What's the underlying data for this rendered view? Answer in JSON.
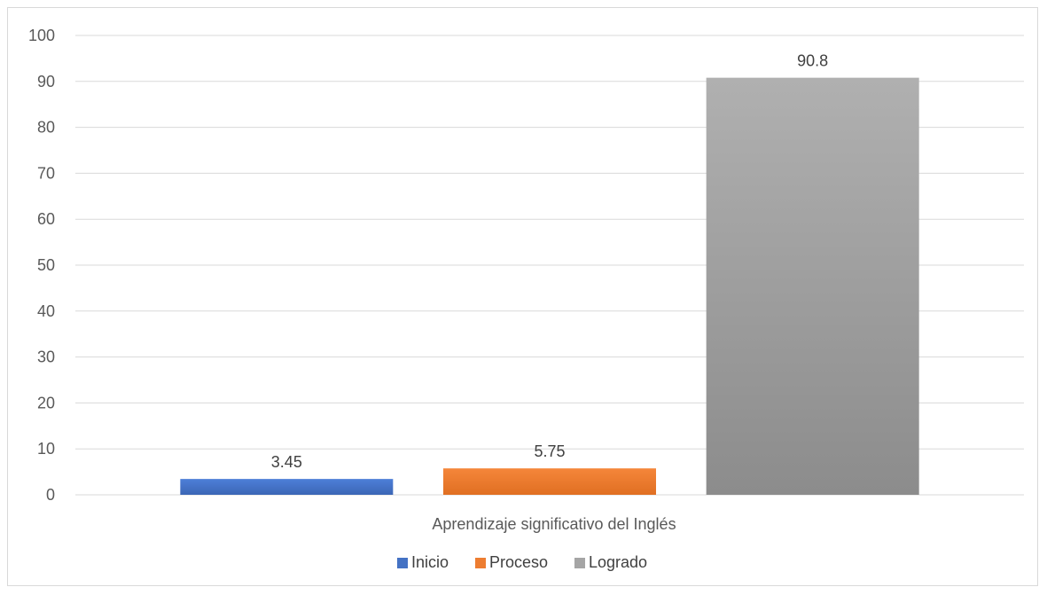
{
  "chart_data": {
    "type": "bar",
    "categories": [
      "Aprendizaje significativo del Inglés"
    ],
    "series": [
      {
        "name": "Inicio",
        "values": [
          3.45
        ],
        "color": "#4472c4",
        "label": "3.45"
      },
      {
        "name": "Proceso",
        "values": [
          5.75
        ],
        "color": "#ed7d31",
        "label": "5.75"
      },
      {
        "name": "Logrado",
        "values": [
          90.8
        ],
        "color": "#a5a5a5",
        "label": "90.8"
      }
    ],
    "ylim": [
      0,
      100
    ],
    "yticks": [
      "0",
      "10",
      "20",
      "30",
      "40",
      "50",
      "60",
      "70",
      "80",
      "90",
      "100"
    ],
    "grid": true,
    "legend_position": "bottom"
  }
}
